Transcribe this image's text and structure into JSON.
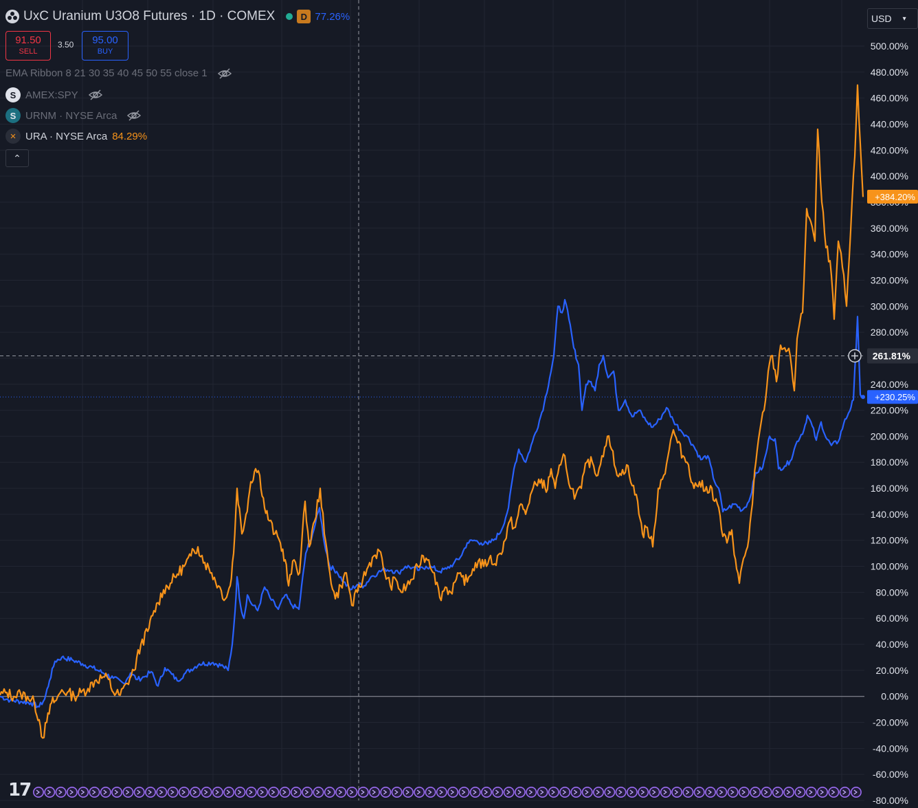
{
  "header": {
    "symbol_title": "UxC Uranium U3O8 Futures · 1D · COMEX",
    "interval_badge": "D",
    "change_pct": "77.26%"
  },
  "trade": {
    "sell_price": "91.50",
    "sell_label": "SELL",
    "spread": "3.50",
    "buy_price": "95.00",
    "buy_label": "BUY"
  },
  "legend": {
    "ema": "EMA Ribbon 8 21 30 35 40 45 50 55 close 1",
    "spy": {
      "icon_letter": "S",
      "label": "AMEX:SPY"
    },
    "urnm": {
      "icon_letter": "S",
      "label": "URNM · NYSE Arca"
    },
    "ura": {
      "icon_letter": "×",
      "label": "URA · NYSE Arca",
      "value": "84.29%"
    },
    "collapse_glyph": "⌃"
  },
  "currency": {
    "label": "USD",
    "chevron": "▾"
  },
  "logo": "17",
  "colors": {
    "background": "#161a25",
    "grid": "#222632",
    "blue_series": "#2962ff",
    "orange_series": "#f7931a",
    "text": "#d1d4dc",
    "axis_text": "#e0e3eb"
  },
  "chart_data": {
    "type": "line",
    "y_axis_unit": "%",
    "ylim": [
      -80,
      500
    ],
    "y_ticks": [
      "500.00%",
      "480.00%",
      "460.00%",
      "440.00%",
      "420.00%",
      "400.00%",
      "380.00%",
      "360.00%",
      "340.00%",
      "320.00%",
      "300.00%",
      "280.00%",
      "260.00%",
      "240.00%",
      "220.00%",
      "200.00%",
      "180.00%",
      "160.00%",
      "140.00%",
      "120.00%",
      "100.00%",
      "80.00%",
      "60.00%",
      "40.00%",
      "20.00%",
      "0.00%",
      "-20.00%",
      "-40.00%",
      "-60.00%",
      "-80.00%"
    ],
    "grid": true,
    "crosshair": {
      "label": "261.81%",
      "value": 261.81
    },
    "last_value_labels": [
      {
        "label": "+384.20%",
        "value": 384.2,
        "series": "orange"
      },
      {
        "label": "+230.25%",
        "value": 230.25,
        "series": "blue"
      }
    ],
    "series": [
      {
        "key": "blue",
        "name": "UxC Uranium U3O8 Futures",
        "color": "#2962ff",
        "points": [
          [
            0,
            0
          ],
          [
            15,
            -3
          ],
          [
            30,
            -4
          ],
          [
            45,
            -5
          ],
          [
            57,
            -8
          ],
          [
            65,
            -2
          ],
          [
            72,
            12
          ],
          [
            80,
            27
          ],
          [
            90,
            30
          ],
          [
            105,
            28
          ],
          [
            120,
            25
          ],
          [
            135,
            22
          ],
          [
            150,
            18
          ],
          [
            165,
            14
          ],
          [
            180,
            10
          ],
          [
            190,
            18
          ],
          [
            200,
            13
          ],
          [
            210,
            15
          ],
          [
            220,
            19
          ],
          [
            230,
            8
          ],
          [
            240,
            22
          ],
          [
            250,
            17
          ],
          [
            258,
            12
          ],
          [
            270,
            18
          ],
          [
            290,
            25
          ],
          [
            310,
            26
          ],
          [
            325,
            23
          ],
          [
            332,
            20
          ],
          [
            338,
            40
          ],
          [
            342,
            65
          ],
          [
            345,
            92
          ],
          [
            350,
            70
          ],
          [
            355,
            60
          ],
          [
            360,
            78
          ],
          [
            365,
            72
          ],
          [
            375,
            66
          ],
          [
            385,
            84
          ],
          [
            395,
            74
          ],
          [
            405,
            67
          ],
          [
            415,
            78
          ],
          [
            425,
            70
          ],
          [
            435,
            67
          ],
          [
            445,
            110
          ],
          [
            455,
            125
          ],
          [
            465,
            145
          ],
          [
            472,
            118
          ],
          [
            480,
            100
          ],
          [
            490,
            96
          ],
          [
            500,
            88
          ],
          [
            510,
            82
          ],
          [
            520,
            86
          ],
          [
            530,
            85
          ],
          [
            540,
            92
          ],
          [
            550,
            95
          ],
          [
            560,
            98
          ],
          [
            570,
            97
          ],
          [
            580,
            95
          ],
          [
            590,
            100
          ],
          [
            600,
            99
          ],
          [
            610,
            97
          ],
          [
            620,
            100
          ],
          [
            630,
            99
          ],
          [
            640,
            96
          ],
          [
            650,
            98
          ],
          [
            660,
            102
          ],
          [
            670,
            107
          ],
          [
            680,
            118
          ],
          [
            690,
            120
          ],
          [
            700,
            118
          ],
          [
            710,
            117
          ],
          [
            720,
            121
          ],
          [
            730,
            128
          ],
          [
            740,
            145
          ],
          [
            748,
            175
          ],
          [
            755,
            190
          ],
          [
            765,
            180
          ],
          [
            775,
            196
          ],
          [
            785,
            212
          ],
          [
            792,
            225
          ],
          [
            800,
            245
          ],
          [
            806,
            262
          ],
          [
            812,
            300
          ],
          [
            818,
            295
          ],
          [
            822,
            305
          ],
          [
            828,
            290
          ],
          [
            835,
            268
          ],
          [
            842,
            255
          ],
          [
            847,
            220
          ],
          [
            853,
            240
          ],
          [
            860,
            242
          ],
          [
            866,
            235
          ],
          [
            872,
            255
          ],
          [
            878,
            262
          ],
          [
            885,
            245
          ],
          [
            893,
            250
          ],
          [
            900,
            220
          ],
          [
            910,
            228
          ],
          [
            920,
            215
          ],
          [
            930,
            220
          ],
          [
            940,
            212
          ],
          [
            950,
            207
          ],
          [
            960,
            213
          ],
          [
            970,
            222
          ],
          [
            980,
            212
          ],
          [
            990,
            205
          ],
          [
            1000,
            200
          ],
          [
            1010,
            192
          ],
          [
            1020,
            182
          ],
          [
            1030,
            185
          ],
          [
            1040,
            165
          ],
          [
            1046,
            160
          ],
          [
            1052,
            142
          ],
          [
            1060,
            145
          ],
          [
            1070,
            148
          ],
          [
            1080,
            143
          ],
          [
            1090,
            150
          ],
          [
            1100,
            172
          ],
          [
            1110,
            176
          ],
          [
            1115,
            187
          ],
          [
            1120,
            200
          ],
          [
            1128,
            198
          ],
          [
            1133,
            175
          ],
          [
            1142,
            177
          ],
          [
            1150,
            181
          ],
          [
            1160,
            196
          ],
          [
            1170,
            205
          ],
          [
            1175,
            216
          ],
          [
            1182,
            208
          ],
          [
            1188,
            197
          ],
          [
            1195,
            211
          ],
          [
            1202,
            199
          ],
          [
            1210,
            193
          ],
          [
            1220,
            196
          ],
          [
            1228,
            210
          ],
          [
            1235,
            218
          ],
          [
            1242,
            228
          ],
          [
            1248,
            292
          ],
          [
            1252,
            232
          ],
          [
            1256,
            230
          ]
        ]
      },
      {
        "key": "orange",
        "name": "URA · NYSE Arca",
        "color": "#f7931a",
        "points": [
          [
            0,
            1
          ],
          [
            10,
            3
          ],
          [
            20,
            0
          ],
          [
            30,
            2
          ],
          [
            40,
            0
          ],
          [
            50,
            -5
          ],
          [
            57,
            -18
          ],
          [
            62,
            -32
          ],
          [
            68,
            -20
          ],
          [
            75,
            -5
          ],
          [
            82,
            -3
          ],
          [
            90,
            5
          ],
          [
            98,
            3
          ],
          [
            108,
            0
          ],
          [
            118,
            3
          ],
          [
            128,
            6
          ],
          [
            138,
            12
          ],
          [
            150,
            15
          ],
          [
            158,
            13
          ],
          [
            165,
            3
          ],
          [
            175,
            1
          ],
          [
            185,
            10
          ],
          [
            195,
            20
          ],
          [
            205,
            40
          ],
          [
            215,
            50
          ],
          [
            222,
            62
          ],
          [
            230,
            72
          ],
          [
            238,
            82
          ],
          [
            248,
            87
          ],
          [
            258,
            94
          ],
          [
            268,
            100
          ],
          [
            278,
            108
          ],
          [
            288,
            115
          ],
          [
            298,
            103
          ],
          [
            308,
            95
          ],
          [
            318,
            85
          ],
          [
            328,
            75
          ],
          [
            335,
            85
          ],
          [
            340,
            110
          ],
          [
            345,
            160
          ],
          [
            352,
            125
          ],
          [
            358,
            140
          ],
          [
            365,
            165
          ],
          [
            372,
            175
          ],
          [
            378,
            170
          ],
          [
            385,
            145
          ],
          [
            392,
            135
          ],
          [
            400,
            125
          ],
          [
            408,
            118
          ],
          [
            415,
            105
          ],
          [
            420,
            85
          ],
          [
            428,
            105
          ],
          [
            436,
            95
          ],
          [
            444,
            150
          ],
          [
            450,
            115
          ],
          [
            458,
            135
          ],
          [
            466,
            160
          ],
          [
            472,
            125
          ],
          [
            480,
            95
          ],
          [
            488,
            75
          ],
          [
            496,
            85
          ],
          [
            504,
            95
          ],
          [
            512,
            70
          ],
          [
            520,
            80
          ],
          [
            528,
            90
          ],
          [
            536,
            100
          ],
          [
            544,
            108
          ],
          [
            552,
            112
          ],
          [
            560,
            95
          ],
          [
            568,
            85
          ],
          [
            576,
            90
          ],
          [
            584,
            80
          ],
          [
            592,
            85
          ],
          [
            600,
            90
          ],
          [
            608,
            100
          ],
          [
            616,
            108
          ],
          [
            624,
            105
          ],
          [
            632,
            95
          ],
          [
            640,
            76
          ],
          [
            648,
            84
          ],
          [
            656,
            80
          ],
          [
            664,
            90
          ],
          [
            672,
            92
          ],
          [
            680,
            88
          ],
          [
            688,
            98
          ],
          [
            696,
            104
          ],
          [
            704,
            100
          ],
          [
            712,
            106
          ],
          [
            720,
            102
          ],
          [
            728,
            110
          ],
          [
            735,
            120
          ],
          [
            742,
            135
          ],
          [
            750,
            130
          ],
          [
            758,
            148
          ],
          [
            765,
            140
          ],
          [
            772,
            155
          ],
          [
            780,
            163
          ],
          [
            788,
            167
          ],
          [
            795,
            157
          ],
          [
            802,
            175
          ],
          [
            808,
            160
          ],
          [
            816,
            178
          ],
          [
            822,
            185
          ],
          [
            830,
            160
          ],
          [
            838,
            155
          ],
          [
            846,
            160
          ],
          [
            854,
            180
          ],
          [
            862,
            180
          ],
          [
            870,
            170
          ],
          [
            876,
            185
          ],
          [
            884,
            200
          ],
          [
            890,
            190
          ],
          [
            896,
            175
          ],
          [
            904,
            170
          ],
          [
            912,
            178
          ],
          [
            920,
            162
          ],
          [
            928,
            150
          ],
          [
            935,
            125
          ],
          [
            942,
            130
          ],
          [
            950,
            115
          ],
          [
            958,
            160
          ],
          [
            966,
            170
          ],
          [
            974,
            190
          ],
          [
            980,
            205
          ],
          [
            986,
            195
          ],
          [
            994,
            185
          ],
          [
            1002,
            178
          ],
          [
            1010,
            160
          ],
          [
            1018,
            165
          ],
          [
            1026,
            158
          ],
          [
            1034,
            162
          ],
          [
            1040,
            150
          ],
          [
            1046,
            145
          ],
          [
            1052,
            123
          ],
          [
            1058,
            118
          ],
          [
            1065,
            128
          ],
          [
            1072,
            98
          ],
          [
            1076,
            87
          ],
          [
            1082,
            106
          ],
          [
            1088,
            115
          ],
          [
            1095,
            148
          ],
          [
            1100,
            180
          ],
          [
            1106,
            205
          ],
          [
            1112,
            220
          ],
          [
            1118,
            250
          ],
          [
            1124,
            262
          ],
          [
            1130,
            242
          ],
          [
            1136,
            270
          ],
          [
            1142,
            268
          ],
          [
            1150,
            262
          ],
          [
            1156,
            235
          ],
          [
            1160,
            275
          ],
          [
            1168,
            295
          ],
          [
            1174,
            375
          ],
          [
            1180,
            365
          ],
          [
            1186,
            350
          ],
          [
            1190,
            436
          ],
          [
            1196,
            380
          ],
          [
            1202,
            345
          ],
          [
            1208,
            335
          ],
          [
            1214,
            290
          ],
          [
            1220,
            350
          ],
          [
            1226,
            330
          ],
          [
            1232,
            300
          ],
          [
            1238,
            358
          ],
          [
            1244,
            415
          ],
          [
            1248,
            470
          ],
          [
            1252,
            425
          ],
          [
            1256,
            384
          ]
        ]
      }
    ]
  }
}
